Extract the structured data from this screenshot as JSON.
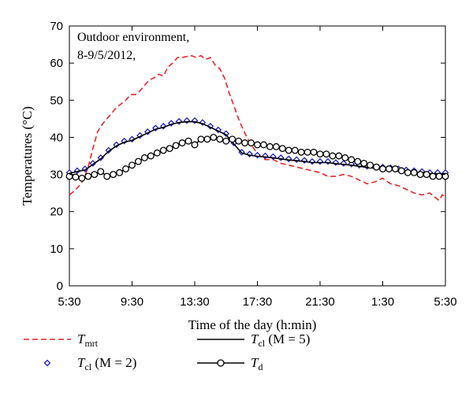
{
  "chart_data": {
    "type": "line",
    "title": "",
    "annotation": [
      "Outdoor environment,",
      "8-9/5/2012,"
    ],
    "xlabel": "Time of the day (h:min)",
    "ylabel": "Temperatures (°C)",
    "x_ticks": [
      "5:30",
      "9:30",
      "13:30",
      "17:30",
      "21:30",
      "1:30",
      "5:30"
    ],
    "x_tick_hours": [
      0,
      4,
      8,
      12,
      16,
      20,
      24
    ],
    "xlim": [
      0,
      24
    ],
    "ylim": [
      0,
      70
    ],
    "y_ticks": [
      0,
      10,
      20,
      30,
      40,
      50,
      60,
      70
    ],
    "grid": false,
    "legend_position": "bottom",
    "x_unit": "hours since 5:30",
    "series": [
      {
        "name": "T_mrt",
        "legend_main": "T",
        "legend_sub": "mrt",
        "legend_extra": "",
        "style": "dashed",
        "color": "#e8262b",
        "marker": "none",
        "x": [
          0,
          0.3,
          0.6,
          0.9,
          1.2,
          1.5,
          1.8,
          2.1,
          2.4,
          2.7,
          3.0,
          3.3,
          3.6,
          3.9,
          4.2,
          4.5,
          4.8,
          5.1,
          5.4,
          5.7,
          6.0,
          6.3,
          6.6,
          6.9,
          7.2,
          7.5,
          7.8,
          8.1,
          8.4,
          8.7,
          9.0,
          9.3,
          9.6,
          9.9,
          10.2,
          10.5,
          10.8,
          11.1,
          11.4,
          11.7,
          12.0,
          12.5,
          13.0,
          13.5,
          14.0,
          14.5,
          15.0,
          15.5,
          16.0,
          16.5,
          17.0,
          17.5,
          18.0,
          18.5,
          19.0,
          19.5,
          20.0,
          20.5,
          21.0,
          21.5,
          22.0,
          22.5,
          23.0,
          23.3,
          23.6,
          23.8,
          24.0
        ],
        "y": [
          24.5,
          25.5,
          26.8,
          28.5,
          32,
          37,
          41.5,
          43.5,
          45,
          46.5,
          48,
          49,
          50,
          51.5,
          51.5,
          52.5,
          54,
          55.5,
          56,
          57,
          56.5,
          59,
          60,
          61.5,
          61.5,
          61.8,
          62,
          61.5,
          62,
          61,
          61.5,
          59.5,
          58.5,
          56,
          52,
          48.5,
          45,
          42,
          39.5,
          37.5,
          35.5,
          34,
          34,
          33,
          32.5,
          32,
          31.5,
          31,
          30.5,
          29.5,
          29.5,
          30,
          29.5,
          28.5,
          27.5,
          28,
          29,
          27.5,
          27,
          26,
          25,
          24.5,
          25,
          24,
          23,
          24.5,
          24
        ]
      },
      {
        "name": "T_cl (M = 2)",
        "legend_main": "T",
        "legend_sub": "cl",
        "legend_extra": " (M = 2)",
        "style": "markers",
        "color": "#1f1fbf",
        "marker": "diamond",
        "x": [
          0,
          0.5,
          1.0,
          1.5,
          2.0,
          2.5,
          3.0,
          3.5,
          4.0,
          4.5,
          5.0,
          5.5,
          6.0,
          6.5,
          7.0,
          7.5,
          8.0,
          8.5,
          9.0,
          9.5,
          10.0,
          10.5,
          11.0,
          11.5,
          12.0,
          12.5,
          13.0,
          13.5,
          14.0,
          14.5,
          15.0,
          15.5,
          16.0,
          16.5,
          17.0,
          17.5,
          18.0,
          18.5,
          19.0,
          19.5,
          20.0,
          20.5,
          21.0,
          21.5,
          22.0,
          22.5,
          23.0,
          23.5,
          24.0
        ],
        "y": [
          30.5,
          31,
          31.5,
          33,
          34.5,
          36.5,
          38,
          39,
          39.5,
          40.5,
          41.5,
          42.5,
          43,
          43.8,
          44.3,
          44.5,
          44.5,
          44,
          43,
          42,
          41,
          38.5,
          36,
          35.5,
          35.2,
          35,
          34.8,
          34.5,
          34.2,
          34,
          33.8,
          33.5,
          33.5,
          33.5,
          33.2,
          33,
          32.8,
          32.5,
          32.2,
          32,
          32,
          31.8,
          31.5,
          31.2,
          31,
          30.8,
          30.5,
          30.5,
          30.5
        ]
      },
      {
        "name": "T_cl (M = 5)",
        "legend_main": "T",
        "legend_sub": "cl",
        "legend_extra": " (M = 5)",
        "style": "solid",
        "color": "#000000",
        "marker": "none",
        "x": [
          0,
          0.5,
          1.0,
          1.5,
          2.0,
          2.5,
          3.0,
          3.5,
          4.0,
          4.5,
          5.0,
          5.5,
          6.0,
          6.5,
          7.0,
          7.5,
          8.0,
          8.5,
          9.0,
          9.5,
          10.0,
          10.5,
          11.0,
          11.5,
          12.0,
          12.5,
          13.0,
          13.5,
          14.0,
          14.5,
          15.0,
          15.5,
          16.0,
          16.5,
          17.0,
          17.5,
          18.0,
          18.5,
          19.0,
          19.5,
          20.0,
          20.5,
          21.0,
          21.5,
          22.0,
          22.5,
          23.0,
          23.5,
          24.0
        ],
        "y": [
          30.3,
          30.8,
          31.2,
          32.7,
          34.2,
          36.2,
          37.7,
          38.7,
          39.2,
          40.2,
          41.2,
          42.2,
          42.7,
          43.5,
          44,
          44.2,
          44.2,
          43.7,
          42.7,
          41.7,
          40.7,
          38.2,
          35.8,
          35.2,
          34.9,
          34.7,
          34.5,
          34.2,
          33.9,
          33.7,
          33.5,
          33.2,
          33.2,
          33.2,
          32.9,
          32.7,
          32.5,
          32.2,
          31.9,
          31.7,
          31.7,
          31.5,
          31.2,
          30.9,
          30.7,
          30.5,
          30.2,
          30.2,
          30.2
        ]
      },
      {
        "name": "T_d",
        "legend_main": "T",
        "legend_sub": "d",
        "legend_extra": "",
        "style": "solid",
        "color": "#000000",
        "marker": "circle",
        "x": [
          0,
          0.4,
          0.8,
          1.2,
          1.6,
          2.0,
          2.4,
          2.8,
          3.2,
          3.6,
          4.0,
          4.4,
          4.8,
          5.2,
          5.6,
          6.0,
          6.4,
          6.8,
          7.2,
          7.6,
          8.0,
          8.4,
          8.8,
          9.2,
          9.6,
          10.0,
          10.4,
          10.8,
          11.2,
          11.6,
          12.0,
          12.4,
          12.8,
          13.2,
          13.6,
          14.0,
          14.4,
          14.8,
          15.2,
          15.6,
          16.0,
          16.4,
          16.8,
          17.2,
          17.6,
          18.0,
          18.4,
          18.8,
          19.2,
          19.6,
          20.0,
          20.4,
          20.8,
          21.2,
          21.6,
          22.0,
          22.4,
          22.8,
          23.2,
          23.6,
          24.0
        ],
        "y": [
          29.5,
          29.3,
          29,
          29.5,
          30,
          30.8,
          29.5,
          30,
          30.5,
          31.5,
          32.5,
          33.5,
          34.5,
          35,
          35.8,
          36.5,
          37,
          37.8,
          38.5,
          39,
          38,
          39.5,
          39.5,
          40,
          39.5,
          39,
          39.5,
          39,
          38.5,
          38.5,
          38,
          38,
          37.5,
          37.5,
          37,
          36.5,
          36.5,
          36,
          36,
          36,
          35.5,
          35.5,
          35,
          35,
          34.5,
          34,
          33.5,
          33,
          32.5,
          32,
          31.5,
          31.5,
          31.5,
          31,
          30.5,
          30.5,
          30,
          30,
          29.5,
          29.5,
          29.5
        ]
      }
    ]
  }
}
